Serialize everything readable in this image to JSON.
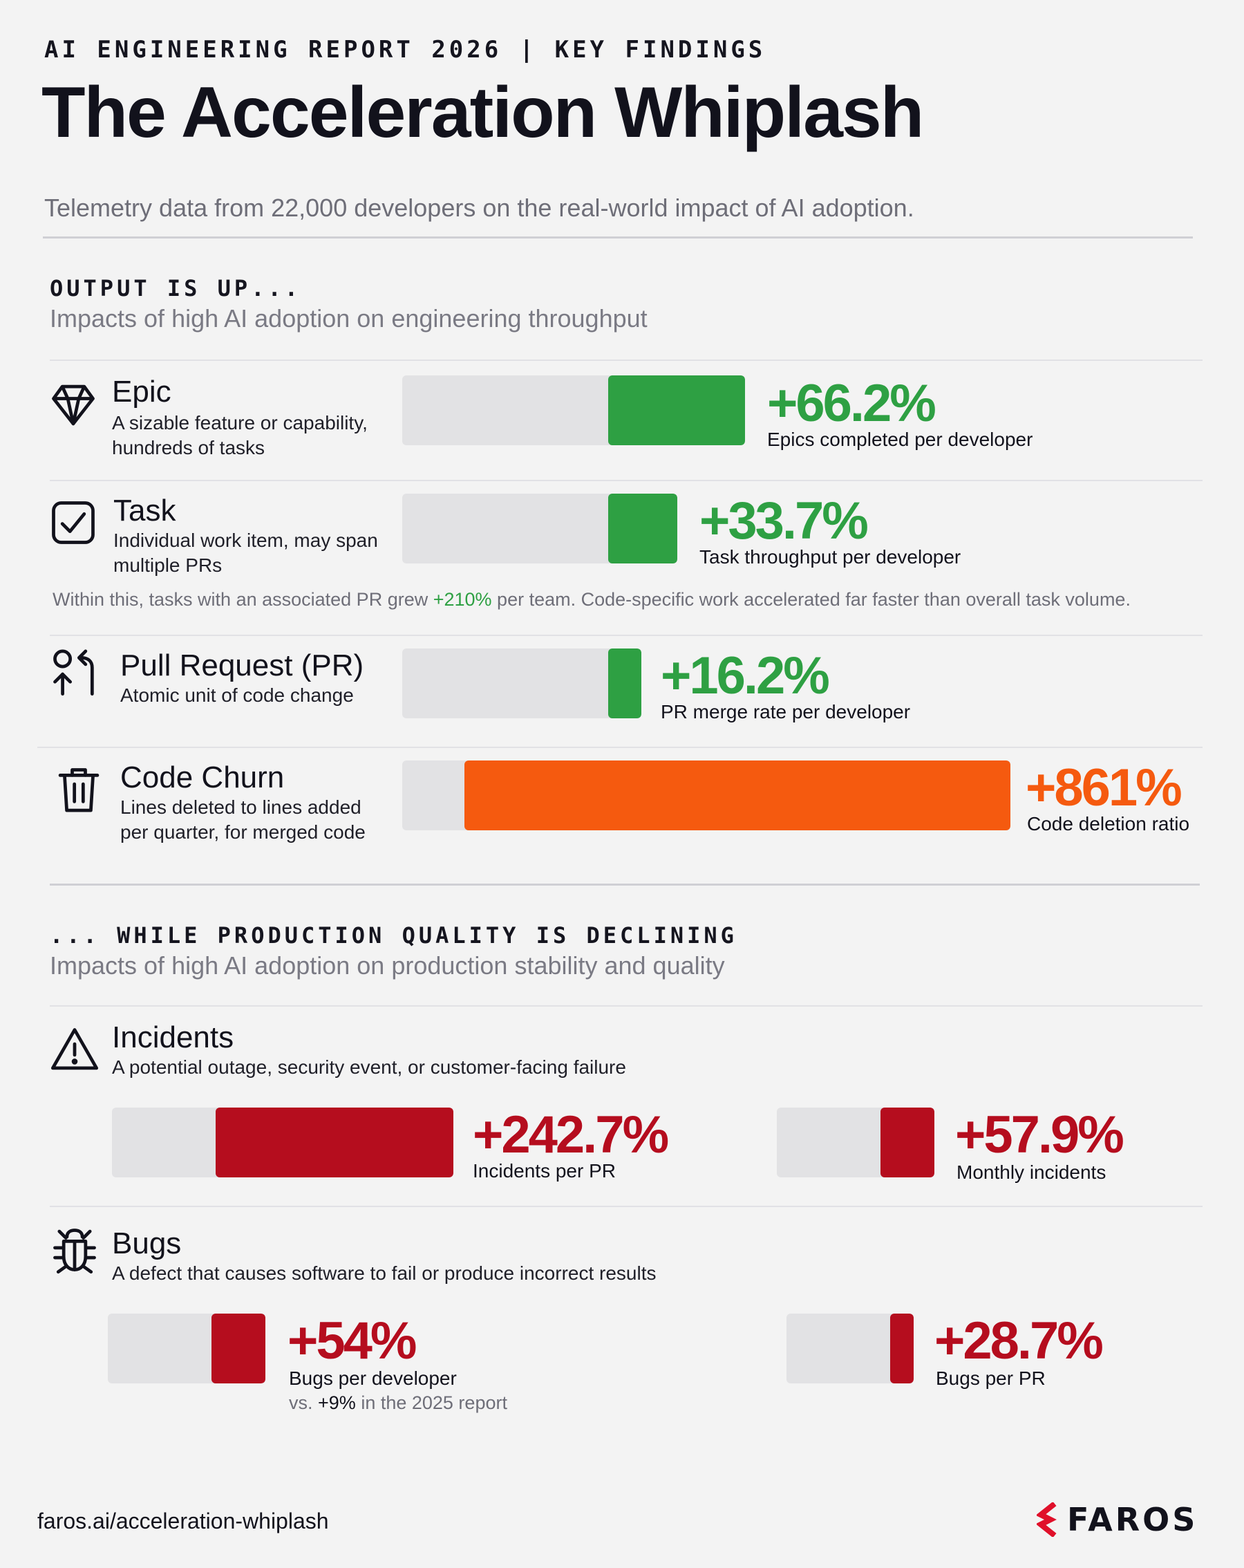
{
  "header": {
    "kicker": "AI ENGINEERING REPORT 2026 | KEY FINDINGS",
    "title": "The Acceleration Whiplash",
    "subtitle": "Telemetry data from 22,000 developers on the real-world impact of AI adoption."
  },
  "colors": {
    "positive": "#2ea043",
    "churn": "#f55a0f",
    "negative": "#b50d1e",
    "track": "#e2e2e4"
  },
  "output_section": {
    "heading": "OUTPUT IS UP...",
    "subheading": "Impacts of high AI adoption on engineering throughput",
    "task_note": {
      "before": "Within this, tasks with an associated PR grew ",
      "highlight": "+210%",
      "after": " per team. Code-specific work accelerated far faster than overall task volume."
    }
  },
  "quality_section": {
    "heading": "... WHILE PRODUCTION QUALITY IS DECLINING",
    "subheading": "Impacts of high AI adoption on production stability and quality",
    "bugs_note": {
      "before": "vs. ",
      "highlight": "+9%",
      "after": " in the 2025 report"
    }
  },
  "chart_data": {
    "type": "bar",
    "title": "The Acceleration Whiplash",
    "groups": [
      {
        "name": "OUTPUT IS UP...",
        "metrics": [
          {
            "name": "Epic",
            "icon": "diamond-icon",
            "description": [
              "A sizable feature or capability,",
              "hundreds of tasks"
            ],
            "value": 66.2,
            "display": "+66.2%",
            "label": "Epics completed per developer",
            "color": "#2ea043"
          },
          {
            "name": "Task",
            "icon": "checkbox-icon",
            "description": [
              "Individual work item, may span",
              "multiple PRs"
            ],
            "value": 33.7,
            "display": "+33.7%",
            "label": "Task throughput per developer",
            "color": "#2ea043"
          },
          {
            "name": "Pull Request (PR)",
            "icon": "pull-request-icon",
            "description": [
              "Atomic unit of code change"
            ],
            "value": 16.2,
            "display": "+16.2%",
            "label": "PR merge rate per developer",
            "color": "#2ea043"
          },
          {
            "name": "Code Churn",
            "icon": "trash-icon",
            "description": [
              "Lines deleted to lines added",
              "per quarter, for merged code"
            ],
            "value": 861,
            "display": "+861%",
            "label": "Code deletion ratio",
            "color": "#f55a0f"
          }
        ]
      },
      {
        "name": "... WHILE PRODUCTION QUALITY IS DECLINING",
        "metrics": [
          {
            "category": "Incidents",
            "icon": "warning-icon",
            "description": "A potential outage, security event, or customer-facing failure",
            "values": [
              {
                "value": 242.7,
                "display": "+242.7%",
                "label": "Incidents per PR",
                "color": "#b50d1e"
              },
              {
                "value": 57.9,
                "display": "+57.9%",
                "label": "Monthly incidents",
                "color": "#b50d1e"
              }
            ]
          },
          {
            "category": "Bugs",
            "icon": "bug-icon",
            "description": "A defect that causes software to fail or produce incorrect results",
            "values": [
              {
                "value": 54,
                "display": "+54%",
                "label": "Bugs per developer",
                "color": "#b50d1e"
              },
              {
                "value": 28.7,
                "display": "+28.7%",
                "label": "Bugs per PR",
                "color": "#b50d1e"
              }
            ]
          }
        ]
      }
    ]
  },
  "footer": {
    "url": "faros.ai/acceleration-whiplash",
    "logo_text": "FAROS"
  }
}
